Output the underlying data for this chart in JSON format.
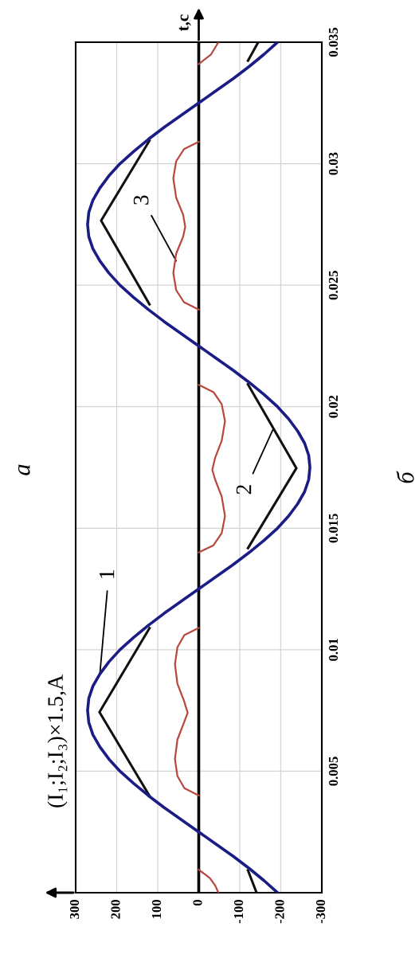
{
  "chart_data": {
    "type": "line",
    "ylabel": "t,c",
    "orientation": "horizontal",
    "ylim": [
      0,
      0.035
    ],
    "yticks": [
      0.005,
      0.01,
      0.015,
      0.02,
      0.025,
      0.03,
      0.035
    ],
    "xlim": [
      300,
      -300
    ],
    "xticks": [
      -300,
      -200,
      -100,
      0,
      100,
      200,
      300
    ],
    "grid": true,
    "ref_lines": [
      {
        "axis": "x",
        "value": 0,
        "color": "#000000"
      }
    ],
    "annotations": [
      "a",
      "б",
      "(I₁;I₂;I₃)×1.5,A",
      {
        "text": "1",
        "y": 0.009,
        "x": 241
      },
      {
        "text": "2",
        "y": 0.0191,
        "x": -182
      },
      {
        "text": "3",
        "y": 0.026,
        "x": 55
      }
    ],
    "series": [
      {
        "color": "#1c1c86",
        "x": [
          0,
          0.0005,
          0.001,
          0.0015,
          0.002,
          0.0025,
          0.003,
          0.0035,
          0.004,
          0.0045,
          0.005,
          0.0055,
          0.006,
          0.0065,
          0.007,
          0.0075,
          0.008,
          0.0085,
          0.009,
          0.0095,
          0.01,
          0.0105,
          0.011,
          0.0115,
          0.012,
          0.0125,
          0.013,
          0.0135,
          0.014,
          0.0145,
          0.015,
          0.0155,
          0.016,
          0.0165,
          0.017,
          0.0175,
          0.018,
          0.0185,
          0.019,
          0.0195,
          0.02,
          0.0205,
          0.021,
          0.0215,
          0.022,
          0.0225,
          0.023,
          0.0235,
          0.024,
          0.0245,
          0.025,
          0.0255,
          0.026,
          0.0265,
          0.027,
          0.0275,
          0.028,
          0.0285,
          0.029,
          0.0295,
          0.03,
          0.0305,
          0.031,
          0.0315,
          0.032,
          0.0325,
          0.033,
          0.0335,
          0.034,
          0.0345,
          0.035
        ],
        "values": [
          -192,
          -159,
          -123,
          -84,
          -42,
          0,
          42,
          84,
          123,
          159,
          192,
          219,
          241,
          258,
          268,
          271,
          268,
          258,
          241,
          219,
          192,
          159,
          123,
          84,
          42,
          0,
          -42,
          -84,
          -123,
          -159,
          -192,
          -219,
          -241,
          -258,
          -268,
          -271,
          -268,
          -258,
          -241,
          -219,
          -192,
          -159,
          -123,
          -84,
          -42,
          0,
          42,
          84,
          123,
          159,
          192,
          219,
          241,
          258,
          268,
          271,
          268,
          258,
          241,
          219,
          192,
          159,
          123,
          84,
          42,
          0,
          -42,
          -84,
          -123,
          -159,
          -192
        ]
      },
      {
        "color": "#111111",
        "x": [
          0,
          0.00092,
          0.002,
          0.00398,
          0.00743,
          0.01089,
          0.0125,
          0.01418,
          0.01747,
          0.02092,
          0.0225,
          0.02421,
          0.02766,
          0.03095,
          0.0325,
          0.03424,
          0.035
        ],
        "values": [
          -141,
          -120,
          null,
          120,
          242,
          120,
          null,
          -120,
          -238,
          -120,
          null,
          120,
          238,
          120,
          null,
          -120,
          -145
        ]
      },
      {
        "color": "#b8473e",
        "x": [
          0,
          0.0003,
          0.0006,
          0.00095,
          0.002,
          0.004,
          0.0043,
          0.0048,
          0.0055,
          0.0063,
          0.007,
          0.0074,
          0.0079,
          0.0086,
          0.0094,
          0.0101,
          0.0106,
          0.0109,
          0.0125,
          0.014,
          0.0143,
          0.0148,
          0.0155,
          0.0163,
          0.017,
          0.0174,
          0.0179,
          0.0186,
          0.0194,
          0.0201,
          0.0206,
          0.0209,
          0.0225,
          0.024,
          0.0243,
          0.0248,
          0.0255,
          0.0263,
          0.027,
          0.0274,
          0.0279,
          0.0286,
          0.0294,
          0.0301,
          0.0306,
          0.0309,
          0.0325,
          0.0341,
          0.0345,
          0.035
        ],
        "values": [
          -48,
          -40,
          -27,
          0,
          null,
          0,
          35,
          52,
          58,
          52,
          36,
          27,
          36,
          52,
          58,
          52,
          35,
          0,
          null,
          0,
          -36,
          -56,
          -64,
          -56,
          -40,
          -33,
          -40,
          -56,
          -64,
          -56,
          -36,
          0,
          null,
          0,
          36,
          55,
          62,
          55,
          38,
          33,
          38,
          55,
          62,
          55,
          36,
          0,
          null,
          0,
          -30,
          -48
        ]
      }
    ]
  }
}
